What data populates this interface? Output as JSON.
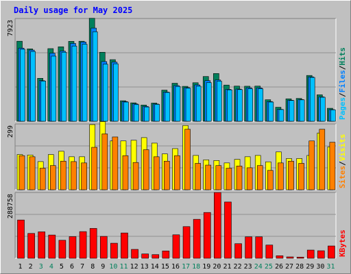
{
  "chart_data": [
    {
      "type": "bar",
      "title": "Daily usage for May 2025",
      "panel": "top",
      "ymax_label": "7923",
      "ylim": [
        0,
        7923
      ],
      "categories": [
        "1",
        "2",
        "3",
        "4",
        "5",
        "6",
        "7",
        "8",
        "9",
        "10",
        "11",
        "12",
        "13",
        "14",
        "15",
        "16",
        "17",
        "18",
        "19",
        "20",
        "21",
        "22",
        "23",
        "24",
        "25",
        "26",
        "27",
        "28",
        "29",
        "30",
        "31"
      ],
      "series": [
        {
          "name": "Hits",
          "values": [
            6170,
            5580,
            3310,
            5600,
            5740,
            6160,
            6170,
            7940,
            5320,
            4750,
            1580,
            1420,
            1250,
            1400,
            2400,
            2930,
            2690,
            2970,
            3450,
            3680,
            2790,
            2710,
            2700,
            2710,
            1660,
            1080,
            1730,
            1760,
            3530,
            2040,
            1000
          ]
        },
        {
          "name": "Files",
          "values": [
            5640,
            5490,
            3130,
            5250,
            5410,
            6000,
            6110,
            7180,
            4600,
            4560,
            1520,
            1340,
            1150,
            1330,
            2250,
            2750,
            2590,
            2800,
            3130,
            3180,
            2460,
            2480,
            2580,
            2570,
            1520,
            920,
            1620,
            1670,
            3420,
            1880,
            900
          ]
        },
        {
          "name": "Pages",
          "values": [
            5550,
            5380,
            3100,
            5020,
            5320,
            5800,
            5940,
            6900,
            4400,
            4430,
            1480,
            1280,
            1100,
            1300,
            2220,
            2680,
            2550,
            2700,
            2980,
            3090,
            2420,
            2440,
            2500,
            2500,
            1480,
            900,
            1600,
            1650,
            3380,
            1850,
            880
          ]
        }
      ]
    },
    {
      "type": "bar",
      "panel": "middle",
      "ymax_label": "299",
      "ylim": [
        0,
        299
      ],
      "categories": [
        "1",
        "2",
        "3",
        "4",
        "5",
        "6",
        "7",
        "8",
        "9",
        "10",
        "11",
        "12",
        "13",
        "14",
        "15",
        "16",
        "17",
        "18",
        "19",
        "20",
        "21",
        "22",
        "23",
        "24",
        "25",
        "26",
        "27",
        "28",
        "29",
        "30",
        "31"
      ],
      "series": [
        {
          "name": "Visits",
          "values": [
            160,
            158,
            128,
            160,
            175,
            150,
            150,
            296,
            310,
            222,
            222,
            225,
            237,
            212,
            163,
            187,
            292,
            156,
            136,
            133,
            122,
            138,
            150,
            156,
            127,
            172,
            142,
            142,
            156,
            258,
            195
          ]
        },
        {
          "name": "Sites",
          "values": [
            155,
            150,
            98,
            110,
            130,
            128,
            122,
            193,
            254,
            240,
            155,
            124,
            182,
            150,
            130,
            155,
            275,
            120,
            112,
            110,
            98,
            108,
            100,
            110,
            88,
            122,
            130,
            120,
            222,
            275,
            216
          ]
        }
      ]
    },
    {
      "type": "bar",
      "panel": "bottom",
      "ymax_label": "288758",
      "ylim": [
        0,
        288758
      ],
      "categories": [
        "1",
        "2",
        "3",
        "4",
        "5",
        "6",
        "7",
        "8",
        "9",
        "10",
        "11",
        "12",
        "13",
        "14",
        "15",
        "16",
        "17",
        "18",
        "19",
        "20",
        "21",
        "22",
        "23",
        "24",
        "25",
        "26",
        "27",
        "28",
        "29",
        "30",
        "31"
      ],
      "series": [
        {
          "name": "KBytes",
          "values": [
            168000,
            109000,
            116000,
            102000,
            79000,
            95000,
            117000,
            131000,
            96000,
            66000,
            111000,
            39000,
            19000,
            16000,
            32000,
            103000,
            139000,
            171000,
            201000,
            288758,
            247000,
            64000,
            94000,
            94000,
            58000,
            11000,
            6000,
            5000,
            36000,
            33000,
            54000
          ]
        }
      ]
    }
  ],
  "legend_right": {
    "top": [
      {
        "text": "Pages",
        "color": "#00c0ff"
      },
      {
        "text": "/",
        "color": "#000000"
      },
      {
        "text": "Files",
        "color": "#0080ff"
      },
      {
        "text": "/",
        "color": "#000000"
      },
      {
        "text": "Hits",
        "color": "#00805c"
      }
    ],
    "middle": [
      {
        "text": "Sites",
        "color": "#ff8000"
      },
      {
        "text": "/",
        "color": "#000000"
      },
      {
        "text": "Visits",
        "color": "#ffff00"
      }
    ],
    "bottom": [
      {
        "text": "KBytes",
        "color": "#ff0000"
      }
    ]
  },
  "colors": {
    "background": "#c0c0c0",
    "title": "#0000ff",
    "hits": "#00805c",
    "files": "#0080ff",
    "pages": "#00c0ff",
    "visits": "#ffff00",
    "sites": "#ff8000",
    "kbytes": "#ff0000",
    "weekend_label": "#00805c",
    "weekday_label": "#000000"
  },
  "weekend_days": [
    "3",
    "4",
    "10",
    "11",
    "17",
    "18",
    "24",
    "25",
    "31"
  ]
}
